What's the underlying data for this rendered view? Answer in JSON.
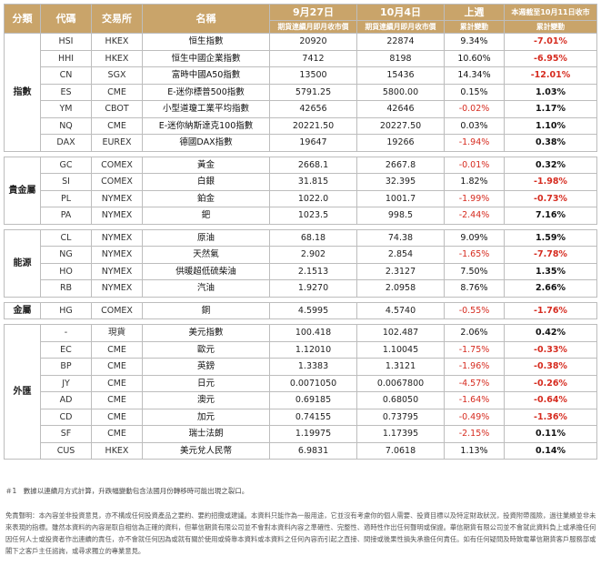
{
  "header": {
    "category": "分類",
    "code": "代碼",
    "exchange": "交易所",
    "name": "名稱",
    "date1": "9月27日",
    "date1_sub": "期貨連續月即月收市價",
    "date2": "10月4日",
    "date2_sub": "期貨連續月即月收市價",
    "last_week": "上週",
    "last_week_sub": "累計變動",
    "this_month": "本週截至10月11日收市",
    "this_month_sub": "累計變動"
  },
  "groups": [
    {
      "name": "指數",
      "rows": [
        {
          "code": "HSI",
          "ex": "HKEX",
          "name": "恒生指數",
          "d1": "20920",
          "d2": "22874",
          "wk": "9.34%",
          "wk_neg": false,
          "mon": "-7.01%",
          "mon_neg": true
        },
        {
          "code": "HHI",
          "ex": "HKEX",
          "name": "恒生中國企業指數",
          "d1": "7412",
          "d2": "8198",
          "wk": "10.60%",
          "wk_neg": false,
          "mon": "-6.95%",
          "mon_neg": true
        },
        {
          "code": "CN",
          "ex": "SGX",
          "name": "富時中國A50指數",
          "d1": "13500",
          "d2": "15436",
          "wk": "14.34%",
          "wk_neg": false,
          "mon": "-12.01%",
          "mon_neg": true
        },
        {
          "code": "ES",
          "ex": "CME",
          "name": "E-迷你標普500指數",
          "d1": "5791.25",
          "d2": "5800.00",
          "wk": "0.15%",
          "wk_neg": false,
          "mon": "1.03%",
          "mon_neg": false
        },
        {
          "code": "YM",
          "ex": "CBOT",
          "name": "小型道瓊工業平均指數",
          "d1": "42656",
          "d2": "42646",
          "wk": "-0.02%",
          "wk_neg": true,
          "mon": "1.17%",
          "mon_neg": false
        },
        {
          "code": "NQ",
          "ex": "CME",
          "name": "E-迷你納斯達克100指數",
          "d1": "20221.50",
          "d2": "20227.50",
          "wk": "0.03%",
          "wk_neg": false,
          "mon": "1.10%",
          "mon_neg": false
        },
        {
          "code": "DAX",
          "ex": "EUREX",
          "name": "德國DAX指數",
          "d1": "19647",
          "d2": "19266",
          "wk": "-1.94%",
          "wk_neg": true,
          "mon": "0.38%",
          "mon_neg": false
        }
      ]
    },
    {
      "name": "貴金屬",
      "rows": [
        {
          "code": "GC",
          "ex": "COMEX",
          "name": "黃金",
          "d1": "2668.1",
          "d2": "2667.8",
          "wk": "-0.01%",
          "wk_neg": true,
          "mon": "0.32%",
          "mon_neg": false
        },
        {
          "code": "SI",
          "ex": "COMEX",
          "name": "白銀",
          "d1": "31.815",
          "d2": "32.395",
          "wk": "1.82%",
          "wk_neg": false,
          "mon": "-1.98%",
          "mon_neg": true
        },
        {
          "code": "PL",
          "ex": "NYMEX",
          "name": "鉑金",
          "d1": "1022.0",
          "d2": "1001.7",
          "wk": "-1.99%",
          "wk_neg": true,
          "mon": "-0.73%",
          "mon_neg": true
        },
        {
          "code": "PA",
          "ex": "NYMEX",
          "name": "鈀",
          "d1": "1023.5",
          "d2": "998.5",
          "wk": "-2.44%",
          "wk_neg": true,
          "mon": "7.16%",
          "mon_neg": false
        }
      ]
    },
    {
      "name": "能源",
      "rows": [
        {
          "code": "CL",
          "ex": "NYMEX",
          "name": "原油",
          "d1": "68.18",
          "d2": "74.38",
          "wk": "9.09%",
          "wk_neg": false,
          "mon": "1.59%",
          "mon_neg": false
        },
        {
          "code": "NG",
          "ex": "NYMEX",
          "name": "天然氣",
          "d1": "2.902",
          "d2": "2.854",
          "wk": "-1.65%",
          "wk_neg": true,
          "mon": "-7.78%",
          "mon_neg": true
        },
        {
          "code": "HO",
          "ex": "NYMEX",
          "name": "供暖超低硫柴油",
          "d1": "2.1513",
          "d2": "2.3127",
          "wk": "7.50%",
          "wk_neg": false,
          "mon": "1.35%",
          "mon_neg": false
        },
        {
          "code": "RB",
          "ex": "NYMEX",
          "name": "汽油",
          "d1": "1.9270",
          "d2": "2.0958",
          "wk": "8.76%",
          "wk_neg": false,
          "mon": "2.66%",
          "mon_neg": false
        }
      ]
    },
    {
      "name": "金屬",
      "rows": [
        {
          "code": "HG",
          "ex": "COMEX",
          "name": "銅",
          "d1": "4.5995",
          "d2": "4.5740",
          "wk": "-0.55%",
          "wk_neg": true,
          "mon": "-1.76%",
          "mon_neg": true
        }
      ]
    },
    {
      "name": "外匯",
      "rows": [
        {
          "code": "-",
          "ex": "現貨",
          "name": "美元指數",
          "d1": "100.418",
          "d2": "102.487",
          "wk": "2.06%",
          "wk_neg": false,
          "mon": "0.42%",
          "mon_neg": false
        },
        {
          "code": "EC",
          "ex": "CME",
          "name": "歐元",
          "d1": "1.12010",
          "d2": "1.10045",
          "wk": "-1.75%",
          "wk_neg": true,
          "mon": "-0.33%",
          "mon_neg": true
        },
        {
          "code": "BP",
          "ex": "CME",
          "name": "英鎊",
          "d1": "1.3383",
          "d2": "1.3121",
          "wk": "-1.96%",
          "wk_neg": true,
          "mon": "-0.38%",
          "mon_neg": true
        },
        {
          "code": "JY",
          "ex": "CME",
          "name": "日元",
          "d1": "0.0071050",
          "d2": "0.0067800",
          "wk": "-4.57%",
          "wk_neg": true,
          "mon": "-0.26%",
          "mon_neg": true
        },
        {
          "code": "AD",
          "ex": "CME",
          "name": "澳元",
          "d1": "0.69185",
          "d2": "0.68050",
          "wk": "-1.64%",
          "wk_neg": true,
          "mon": "-0.64%",
          "mon_neg": true
        },
        {
          "code": "CD",
          "ex": "CME",
          "name": "加元",
          "d1": "0.74155",
          "d2": "0.73795",
          "wk": "-0.49%",
          "wk_neg": true,
          "mon": "-1.36%",
          "mon_neg": true
        },
        {
          "code": "SF",
          "ex": "CME",
          "name": "瑞士法朗",
          "d1": "1.19975",
          "d2": "1.17395",
          "wk": "-2.15%",
          "wk_neg": true,
          "mon": "0.11%",
          "mon_neg": false
        },
        {
          "code": "CUS",
          "ex": "HKEX",
          "name": "美元兌人民幣",
          "d1": "6.9831",
          "d2": "7.0618",
          "wk": "1.13%",
          "wk_neg": false,
          "mon": "0.14%",
          "mon_neg": false
        }
      ]
    }
  ],
  "colors": {
    "header_bg": "#c9a46a",
    "negative": "#d62b1f",
    "border": "#bdbdbd"
  },
  "footnote": "＃1　數據以連續月方式計算，升跌幅變動包含法國月份轉移時可能出現之裂口。",
  "disclaimer": "免責聲明：本內容並非投資意見，亦不構成任何投資產品之要約、要約招攬或建議。本資料只能作為一般用途，它並沒有考慮你的個人需要、投資目標以及特定財政狀況，投資附帶風險，過往業績並非未來表現的指標。雖然本資料的內容是取自相信為正確的資料，但華信期貨有限公司並不會對本資料內容之準確性、完整性、適時性作出任何聲明或保證。華信期貨有限公司並不會就此資料負上或承擔任何因任何人士或投資者作出連續的責任，亦不會就任何因為或就有關於使用或倚靠本資料或本資料之任何內容而引起之直接、間接或後果性損失承擔任何責任。如有任何疑問及時致電華信期貨客戶服務部或閣下之客戶主任諮詢，或尋求獨立的專業意見。"
}
